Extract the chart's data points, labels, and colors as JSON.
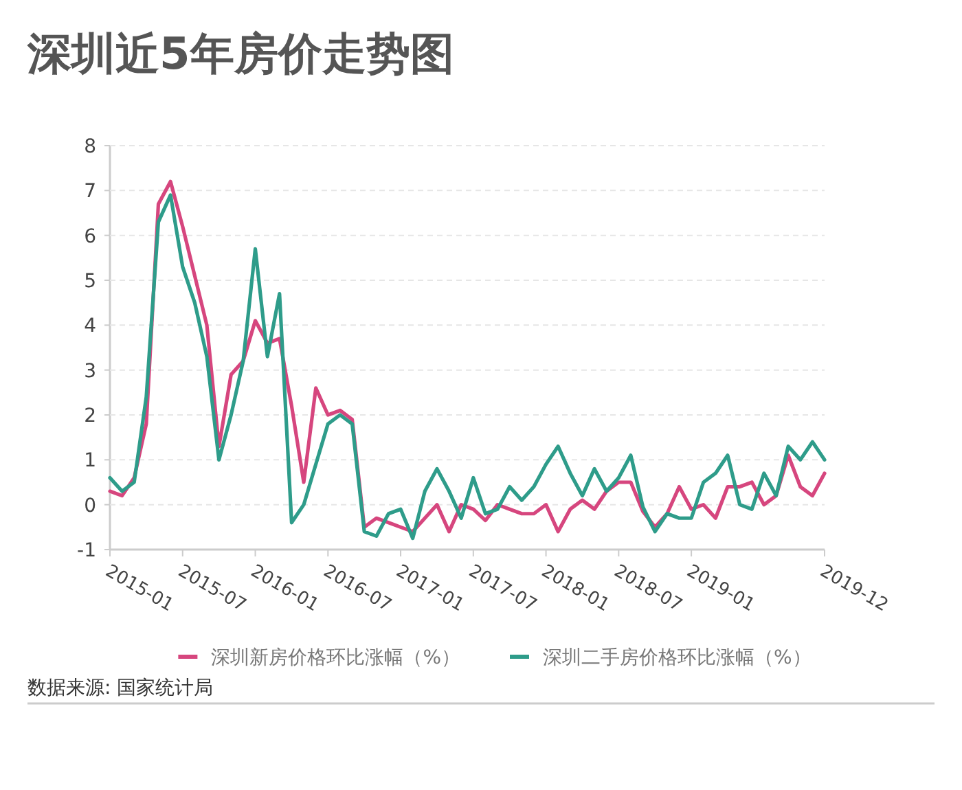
{
  "chart_data": {
    "type": "line",
    "title": "深圳近5年房价走势图",
    "x": [
      "2015-01",
      "2015-02",
      "2015-03",
      "2015-04",
      "2015-05",
      "2015-06",
      "2015-07",
      "2015-08",
      "2015-09",
      "2015-10",
      "2015-11",
      "2015-12",
      "2016-01",
      "2016-02",
      "2016-03",
      "2016-04",
      "2016-05",
      "2016-06",
      "2016-07",
      "2016-08",
      "2016-09",
      "2016-10",
      "2016-11",
      "2016-12",
      "2017-01",
      "2017-02",
      "2017-03",
      "2017-04",
      "2017-05",
      "2017-06",
      "2017-07",
      "2017-08",
      "2017-09",
      "2017-10",
      "2017-11",
      "2017-12",
      "2018-01",
      "2018-02",
      "2018-03",
      "2018-04",
      "2018-05",
      "2018-06",
      "2018-07",
      "2018-08",
      "2018-09",
      "2018-10",
      "2018-11",
      "2018-12",
      "2019-01",
      "2019-02",
      "2019-03",
      "2019-04",
      "2019-05",
      "2019-06",
      "2019-07",
      "2019-08",
      "2019-09",
      "2019-10",
      "2019-11",
      "2019-12"
    ],
    "series": [
      {
        "name": "深圳新房价格环比涨幅（%）",
        "color": "#d6467e",
        "values": [
          0.3,
          0.2,
          0.6,
          1.8,
          6.7,
          7.2,
          6.2,
          5.1,
          4.0,
          1.3,
          2.9,
          3.2,
          4.1,
          3.6,
          3.7,
          2.2,
          0.5,
          2.6,
          2.0,
          2.1,
          1.9,
          -0.5,
          -0.3,
          -0.4,
          -0.5,
          -0.6,
          -0.3,
          0.0,
          -0.6,
          0.0,
          -0.1,
          -0.35,
          0.0,
          -0.1,
          -0.2,
          -0.2,
          0.0,
          -0.6,
          -0.1,
          0.1,
          -0.1,
          0.3,
          0.5,
          0.5,
          -0.15,
          -0.5,
          -0.2,
          0.4,
          -0.1,
          0.0,
          -0.3,
          0.4,
          0.4,
          0.5,
          0.0,
          0.2,
          1.1,
          0.4,
          0.2,
          0.7
        ]
      },
      {
        "name": "深圳二手房价格环比涨幅（%）",
        "color": "#2e9c8a",
        "values": [
          0.6,
          0.3,
          0.5,
          2.4,
          6.3,
          6.9,
          5.3,
          4.5,
          3.3,
          1.0,
          2.0,
          3.2,
          5.7,
          3.3,
          4.7,
          -0.4,
          0.0,
          0.9,
          1.8,
          2.0,
          1.8,
          -0.6,
          -0.7,
          -0.2,
          -0.1,
          -0.75,
          0.3,
          0.8,
          0.3,
          -0.3,
          0.6,
          -0.2,
          -0.1,
          0.4,
          0.1,
          0.4,
          0.9,
          1.3,
          0.7,
          0.2,
          0.8,
          0.3,
          0.6,
          1.1,
          -0.05,
          -0.6,
          -0.2,
          -0.3,
          -0.3,
          0.5,
          0.7,
          1.1,
          0.0,
          -0.1,
          0.7,
          0.2,
          1.3,
          1.0,
          1.4,
          1.0
        ]
      }
    ],
    "xlim": [
      "2015-01",
      "2019-12"
    ],
    "xticks": [
      "2015-01",
      "2015-07",
      "2016-01",
      "2016-07",
      "2017-01",
      "2017-07",
      "2018-01",
      "2018-07",
      "2019-01",
      "2019-12"
    ],
    "ylim": [
      -1,
      8
    ],
    "yticks": [
      -1,
      0,
      1,
      2,
      3,
      4,
      5,
      6,
      7,
      8
    ],
    "grid": "y",
    "legend": "bottom",
    "marker": "none",
    "line_style": "solid",
    "annotations": [
      "数据来源: 国家统计局"
    ]
  }
}
